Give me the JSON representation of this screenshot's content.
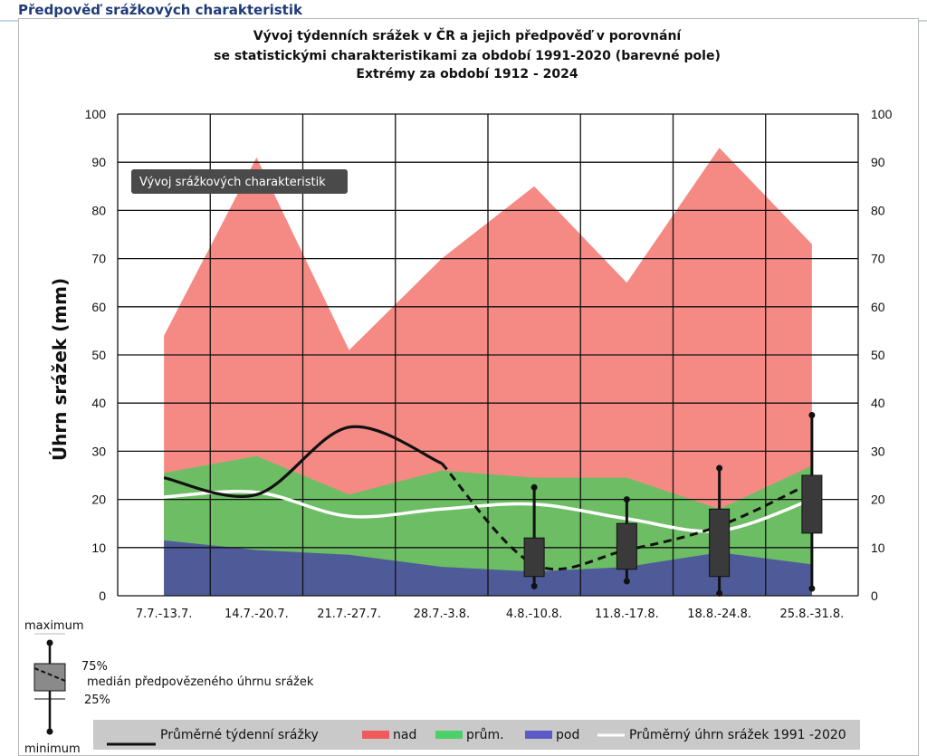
{
  "page": {
    "heading": "Předpověď srážkových charakteristik"
  },
  "tooltip": {
    "label": "Vývoj srážkových charakteristik"
  },
  "chart_data": {
    "type": "area",
    "title": [
      "Vývoj týdenních srážek v ČR a jejich předpověď v porovnání",
      "se statistickými charakteristikami za období 1991-2020 (barevné pole)",
      "Extrémy za období 1912 - 2024"
    ],
    "ylabel": "Úhrn srážek (mm)",
    "xlabel": "",
    "ylim": [
      0,
      100
    ],
    "yticks": [
      0,
      10,
      20,
      30,
      40,
      50,
      60,
      70,
      80,
      90,
      100
    ],
    "grid": true,
    "categories": [
      "7.7.-13.7.",
      "14.7.-20.7.",
      "21.7.-27.7.",
      "28.7.-3.8.",
      "4.8.-10.8.",
      "11.8.-17.8.",
      "18.8.-24.8.",
      "25.8.-31.8."
    ],
    "bands": [
      {
        "name": "nad",
        "color": "#f58a84",
        "upper": [
          54,
          91,
          51,
          70,
          85,
          65,
          93,
          73
        ]
      },
      {
        "name": "prům.",
        "color": "#6cbd63",
        "upper": [
          25.5,
          29,
          21,
          26,
          24.5,
          24.5,
          18,
          27
        ]
      },
      {
        "name": "pod",
        "color": "#4f5a99",
        "upper": [
          11.5,
          9.5,
          8.5,
          6,
          5,
          6,
          9,
          6.5
        ]
      }
    ],
    "series": [
      {
        "name": "Průměrný úhrn srážek 1991 -2020",
        "color": "#ffffff",
        "values": [
          20.5,
          21.5,
          16.5,
          18,
          19,
          16,
          13.5,
          20
        ]
      },
      {
        "name": "Průměrné týdenní srážky",
        "color": "#111111",
        "values": [
          24.5,
          21,
          35,
          27.5,
          null,
          null,
          null,
          null
        ]
      }
    ],
    "forecast_median": [
      null,
      null,
      null,
      27.5,
      6.5,
      9.5,
      14.5,
      23.5
    ],
    "forecast_boxes": [
      {
        "category": "4.8.-10.8.",
        "min": 2,
        "q25": 4,
        "q75": 12,
        "max": 22.5
      },
      {
        "category": "11.8.-17.8.",
        "min": 3,
        "q25": 5.5,
        "q75": 15,
        "max": 20
      },
      {
        "category": "18.8.-24.8.",
        "min": 0.5,
        "q25": 4,
        "q75": 18,
        "max": 26.5
      },
      {
        "category": "25.8.-31.8.",
        "min": 1.5,
        "q25": 13,
        "q75": 25,
        "max": 37.5
      }
    ],
    "legend": {
      "position": "bottom",
      "items": [
        {
          "label": "Průměrné týdenní srážky",
          "kind": "line",
          "color": "#111111"
        },
        {
          "label": "nad",
          "kind": "swatch",
          "color": "#f05a5a"
        },
        {
          "label": "prům.",
          "kind": "swatch",
          "color": "#4cd06a"
        },
        {
          "label": "pod",
          "kind": "swatch",
          "color": "#5b5bc8"
        },
        {
          "label": "Průměrný úhrn srážek 1991 -2020",
          "kind": "line",
          "color": "#ffffff"
        }
      ]
    },
    "box_key": {
      "maximum": "maximum",
      "q75": "75%",
      "median": "medián předpovězeného úhrnu srážek",
      "q25": "25%",
      "minimum": "minimum"
    }
  }
}
